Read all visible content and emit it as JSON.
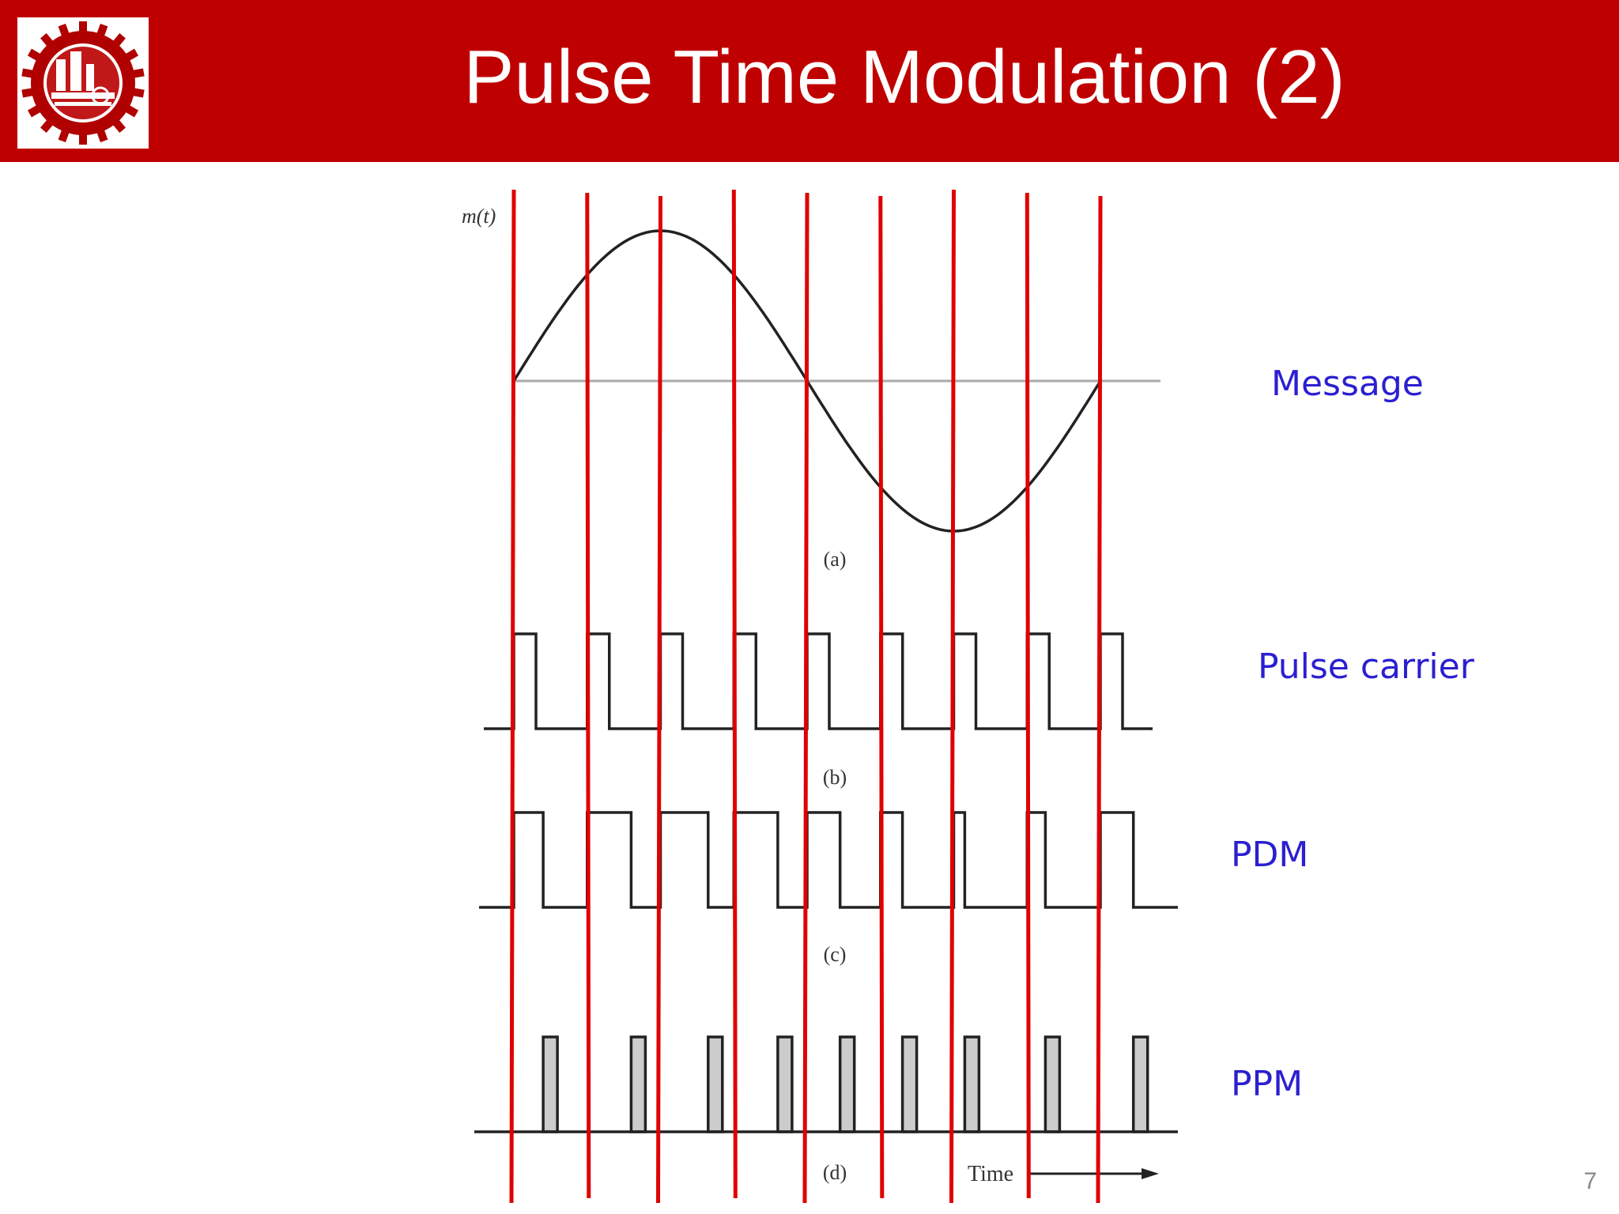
{
  "slide": {
    "title": "Pulse Time Modulation (2)",
    "page_number": "7"
  },
  "logo": {
    "icon": "university-gear-emblem-icon"
  },
  "figure": {
    "axis_label": "m(t)",
    "panel_labels": [
      "(a)",
      "(b)",
      "(c)",
      "(d)"
    ],
    "time_label": "Time",
    "side_labels": {
      "message": "Message",
      "pulse_carrier": "Pulse carrier",
      "pdm": "PDM",
      "ppm": "PPM"
    },
    "colors": {
      "header": "#bf0000",
      "sampling_lines": "#e00000",
      "side_label_text": "#2b1fd0",
      "waveform": "#222222",
      "baseline": "#aaaaaa",
      "ppm_pulse_fill": "#cccccc"
    },
    "sampling_line_count": 9,
    "pdm_duty_fractions": [
      0.4,
      0.6,
      0.65,
      0.6,
      0.45,
      0.3,
      0.15,
      0.25,
      0.45
    ]
  }
}
